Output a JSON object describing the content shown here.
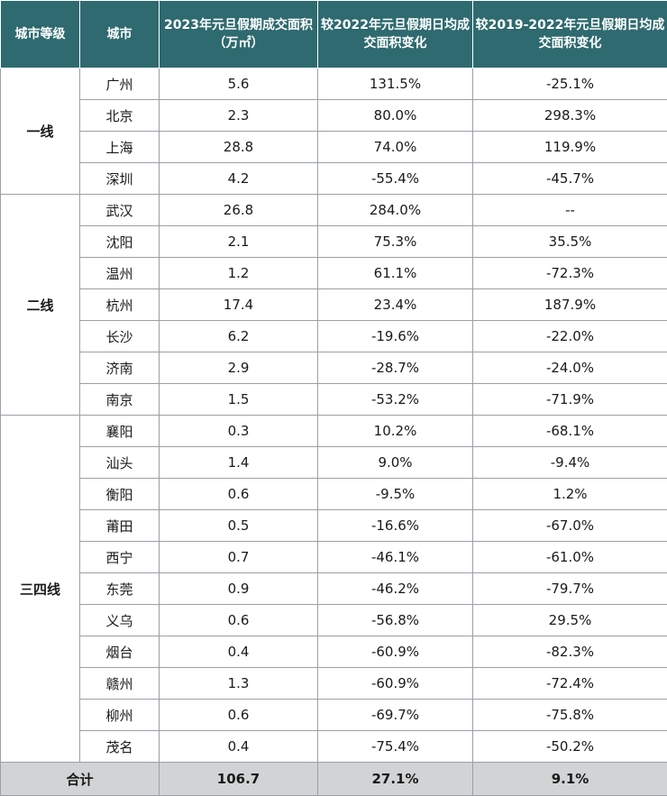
{
  "headers": {
    "tier": "城市等级",
    "city": "城市",
    "area_2023": "2023年元旦假期成交面积（万㎡）",
    "change_vs_2022": "较2022年元旦假期日均成交面积变化",
    "change_vs_2019_2022": "较2019-2022年元旦假期日均成交面积变化"
  },
  "tiers": [
    {
      "name": "一线",
      "rows": [
        {
          "city": "广州",
          "area": "5.6",
          "c2022": "131.5%",
          "c1922": "-25.1%"
        },
        {
          "city": "北京",
          "area": "2.3",
          "c2022": "80.0%",
          "c1922": "298.3%"
        },
        {
          "city": "上海",
          "area": "28.8",
          "c2022": "74.0%",
          "c1922": "119.9%"
        },
        {
          "city": "深圳",
          "area": "4.2",
          "c2022": "-55.4%",
          "c1922": "-45.7%"
        }
      ]
    },
    {
      "name": "二线",
      "rows": [
        {
          "city": "武汉",
          "area": "26.8",
          "c2022": "284.0%",
          "c1922": "--"
        },
        {
          "city": "沈阳",
          "area": "2.1",
          "c2022": "75.3%",
          "c1922": "35.5%"
        },
        {
          "city": "温州",
          "area": "1.2",
          "c2022": "61.1%",
          "c1922": "-72.3%"
        },
        {
          "city": "杭州",
          "area": "17.4",
          "c2022": "23.4%",
          "c1922": "187.9%"
        },
        {
          "city": "长沙",
          "area": "6.2",
          "c2022": "-19.6%",
          "c1922": "-22.0%"
        },
        {
          "city": "济南",
          "area": "2.9",
          "c2022": "-28.7%",
          "c1922": "-24.0%"
        },
        {
          "city": "南京",
          "area": "1.5",
          "c2022": "-53.2%",
          "c1922": "-71.9%"
        }
      ]
    },
    {
      "name": "三四线",
      "rows": [
        {
          "city": "襄阳",
          "area": "0.3",
          "c2022": "10.2%",
          "c1922": "-68.1%"
        },
        {
          "city": "汕头",
          "area": "1.4",
          "c2022": "9.0%",
          "c1922": "-9.4%"
        },
        {
          "city": "衡阳",
          "area": "0.6",
          "c2022": "-9.5%",
          "c1922": "1.2%"
        },
        {
          "city": "莆田",
          "area": "0.5",
          "c2022": "-16.6%",
          "c1922": "-67.0%"
        },
        {
          "city": "西宁",
          "area": "0.7",
          "c2022": "-46.1%",
          "c1922": "-61.0%"
        },
        {
          "city": "东莞",
          "area": "0.9",
          "c2022": "-46.2%",
          "c1922": "-79.7%"
        },
        {
          "city": "义乌",
          "area": "0.6",
          "c2022": "-56.8%",
          "c1922": "29.5%"
        },
        {
          "city": "烟台",
          "area": "0.4",
          "c2022": "-60.9%",
          "c1922": "-82.3%"
        },
        {
          "city": "赣州",
          "area": "1.3",
          "c2022": "-60.9%",
          "c1922": "-72.4%"
        },
        {
          "city": "柳州",
          "area": "0.6",
          "c2022": "-69.7%",
          "c1922": "-75.8%"
        },
        {
          "city": "茂名",
          "area": "0.4",
          "c2022": "-75.4%",
          "c1922": "-50.2%"
        }
      ]
    }
  ],
  "total": {
    "label": "合计",
    "area": "106.7",
    "c2022": "27.1%",
    "c1922": "9.1%"
  },
  "colors": {
    "header_bg": "#2e6a6f",
    "total_bg": "#d1d3d4",
    "border": "#9aa0a6"
  }
}
